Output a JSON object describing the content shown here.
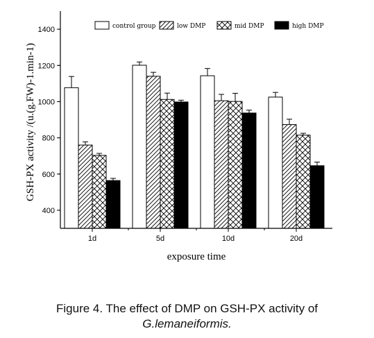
{
  "chart_data": {
    "type": "bar",
    "categories": [
      "1d",
      "5d",
      "10d",
      "20d"
    ],
    "series": [
      {
        "name": "control group",
        "values": [
          1077,
          1201,
          1143,
          1025
        ],
        "errors": [
          62,
          18,
          40,
          26
        ],
        "pattern": "white"
      },
      {
        "name": "low DMP",
        "values": [
          760,
          1140,
          1005,
          873
        ],
        "errors": [
          18,
          22,
          35,
          30
        ],
        "pattern": "diagonal"
      },
      {
        "name": "mid DMP",
        "values": [
          703,
          1012,
          1001,
          815
        ],
        "errors": [
          11,
          35,
          45,
          10
        ],
        "pattern": "crosshatch"
      },
      {
        "name": "high DMP",
        "values": [
          564,
          998,
          937,
          646
        ],
        "errors": [
          12,
          10,
          16,
          20
        ],
        "pattern": "black"
      }
    ],
    "xlabel": "exposure time",
    "ylabel": "GSH-PX activity /(u.(g.FW)-1.min-1)",
    "ylim": [
      300,
      1500
    ],
    "yticks": [
      400,
      600,
      800,
      1000,
      1200,
      1400
    ],
    "legend_position": "top",
    "grid": false
  },
  "caption": {
    "line1": "Figure 4. The effect of DMP on GSH-PX activity of",
    "line2": "G.lemaneiformis."
  }
}
